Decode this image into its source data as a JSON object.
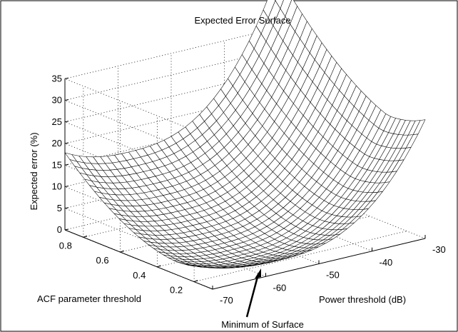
{
  "chart_data": {
    "type": "surface",
    "title": "Expected Error Surface",
    "zlabel": "Expected error (%)",
    "xlabel": "Power threshold (dB)",
    "ylabel": "ACF parameter threshold",
    "x_ticks": [
      -70,
      -60,
      -50,
      -40,
      -30
    ],
    "y_ticks": [
      0.2,
      0.4,
      0.6,
      0.8
    ],
    "z_ticks": [
      0,
      5,
      10,
      15,
      20,
      25,
      30,
      35
    ],
    "xlim": [
      -70,
      -30
    ],
    "ylim": [
      0.1,
      0.9
    ],
    "zlim": [
      0,
      35
    ],
    "grid": true,
    "surface_corners": [
      {
        "x": -30,
        "y": 0.9,
        "z": 33
      },
      {
        "x": -30,
        "y": 0.1,
        "z": 25
      },
      {
        "x": -70,
        "y": 0.9,
        "z": 17
      },
      {
        "x": -70,
        "y": 0.1,
        "z": 3
      }
    ],
    "minimum": {
      "x": -58,
      "y": 0.3,
      "z": 0.5
    },
    "annotation": "Minimum of Surface"
  }
}
